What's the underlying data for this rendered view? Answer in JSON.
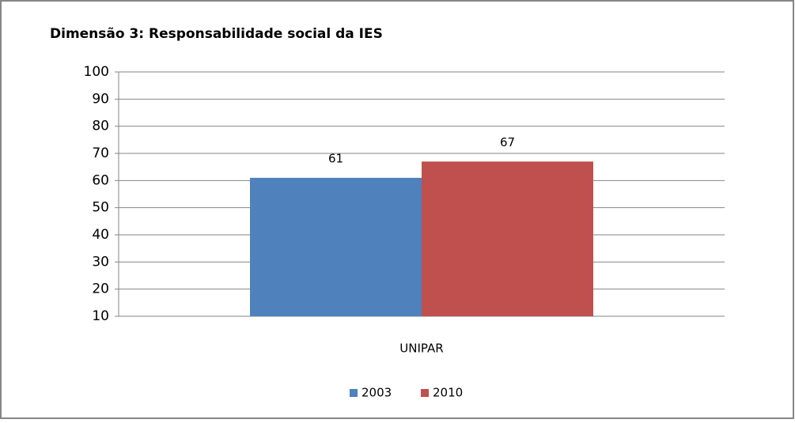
{
  "chart_data": {
    "type": "bar",
    "title": "Dimensão 3: Responsabilidade social da IES",
    "categories": [
      "UNIPAR"
    ],
    "series": [
      {
        "name": "2003",
        "color": "#4f81bd",
        "values": [
          61
        ]
      },
      {
        "name": "2010",
        "color": "#c0504d",
        "values": [
          67
        ]
      }
    ],
    "ylim": [
      10,
      100
    ],
    "yticks": [
      10,
      20,
      30,
      40,
      50,
      60,
      70,
      80,
      90,
      100
    ],
    "grid": true,
    "legend": "bottom"
  }
}
